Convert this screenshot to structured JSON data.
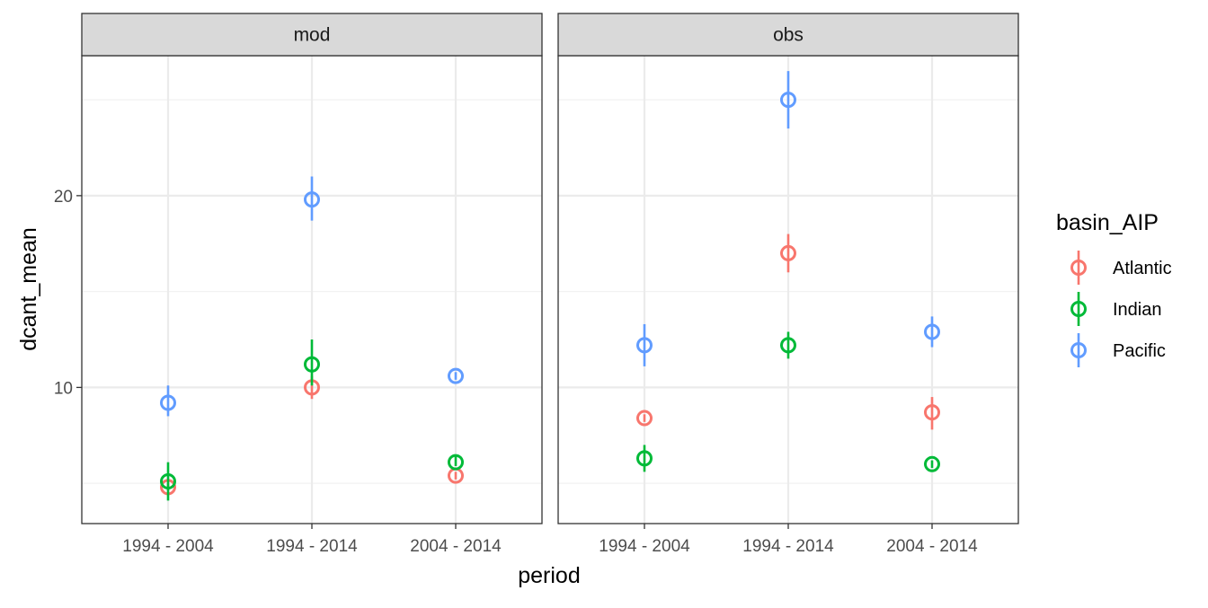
{
  "chart_data": {
    "type": "scatter",
    "xlabel": "period",
    "ylabel": "dcant_mean",
    "categories": [
      "1994 - 2004",
      "1994 - 2014",
      "2004 - 2014"
    ],
    "y_ticks": [
      10,
      20
    ],
    "ylim": [
      2.9,
      27.3
    ],
    "grid": true,
    "facets": [
      "mod",
      "obs"
    ],
    "legend": {
      "title": "basin_AIP",
      "position": "right",
      "entries": [
        "Atlantic",
        "Indian",
        "Pacific"
      ]
    },
    "colors": {
      "Atlantic": "#F8766D",
      "Indian": "#00BA38",
      "Pacific": "#619CFF"
    },
    "panels": [
      {
        "facet": "mod",
        "series": [
          {
            "name": "Atlantic",
            "values": [
              4.8,
              10.0,
              5.4
            ],
            "err_low": [
              4.6,
              9.4,
              5.2
            ],
            "err_high": [
              5.0,
              10.6,
              5.6
            ]
          },
          {
            "name": "Indian",
            "values": [
              5.1,
              11.2,
              6.1
            ],
            "err_low": [
              4.1,
              10.1,
              5.9
            ],
            "err_high": [
              6.1,
              12.5,
              6.4
            ]
          },
          {
            "name": "Pacific",
            "values": [
              9.2,
              19.8,
              10.6
            ],
            "err_low": [
              8.5,
              18.7,
              10.4
            ],
            "err_high": [
              10.1,
              21.0,
              10.8
            ]
          }
        ]
      },
      {
        "facet": "obs",
        "series": [
          {
            "name": "Atlantic",
            "values": [
              8.4,
              17.0,
              8.7
            ],
            "err_low": [
              8.2,
              16.0,
              7.8
            ],
            "err_high": [
              8.6,
              18.0,
              9.5
            ]
          },
          {
            "name": "Indian",
            "values": [
              6.3,
              12.2,
              6.0
            ],
            "err_low": [
              5.6,
              11.5,
              5.8
            ],
            "err_high": [
              7.0,
              12.9,
              6.2
            ]
          },
          {
            "name": "Pacific",
            "values": [
              12.2,
              25.0,
              12.9
            ],
            "err_low": [
              11.1,
              23.5,
              12.1
            ],
            "err_high": [
              13.3,
              26.5,
              13.7
            ]
          }
        ]
      }
    ]
  }
}
